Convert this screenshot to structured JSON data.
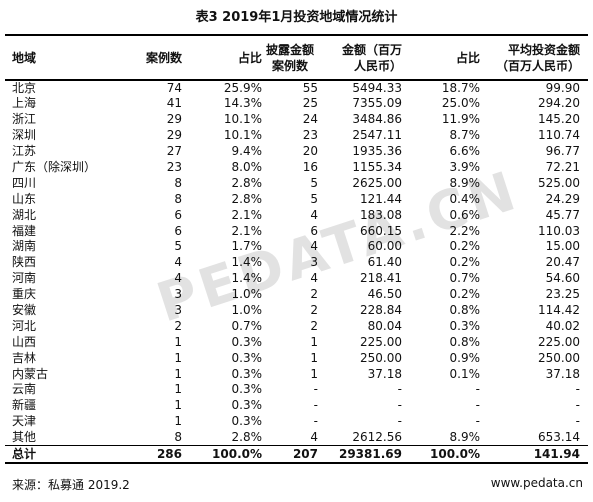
{
  "title": "表3  2019年1月投资地域情况统计",
  "table": {
    "headers": [
      [
        "地域"
      ],
      [
        "案例数"
      ],
      [
        "占比"
      ],
      [
        "披露金额",
        "案例数"
      ],
      [
        "金额（百万",
        "人民币）"
      ],
      [
        "占比"
      ],
      [
        "平均投资金额",
        "（百万人民币）"
      ]
    ],
    "rows": [
      [
        "北京",
        "74",
        "25.9%",
        "55",
        "5494.33",
        "18.7%",
        "99.90"
      ],
      [
        "上海",
        "41",
        "14.3%",
        "25",
        "7355.09",
        "25.0%",
        "294.20"
      ],
      [
        "浙江",
        "29",
        "10.1%",
        "24",
        "3484.86",
        "11.9%",
        "145.20"
      ],
      [
        "深圳",
        "29",
        "10.1%",
        "23",
        "2547.11",
        "8.7%",
        "110.74"
      ],
      [
        "江苏",
        "27",
        "9.4%",
        "20",
        "1935.36",
        "6.6%",
        "96.77"
      ],
      [
        "广东（除深圳）",
        "23",
        "8.0%",
        "16",
        "1155.34",
        "3.9%",
        "72.21"
      ],
      [
        "四川",
        "8",
        "2.8%",
        "5",
        "2625.00",
        "8.9%",
        "525.00"
      ],
      [
        "山东",
        "8",
        "2.8%",
        "5",
        "121.44",
        "0.4%",
        "24.29"
      ],
      [
        "湖北",
        "6",
        "2.1%",
        "4",
        "183.08",
        "0.6%",
        "45.77"
      ],
      [
        "福建",
        "6",
        "2.1%",
        "6",
        "660.15",
        "2.2%",
        "110.03"
      ],
      [
        "湖南",
        "5",
        "1.7%",
        "4",
        "60.00",
        "0.2%",
        "15.00"
      ],
      [
        "陕西",
        "4",
        "1.4%",
        "3",
        "61.40",
        "0.2%",
        "20.47"
      ],
      [
        "河南",
        "4",
        "1.4%",
        "4",
        "218.41",
        "0.7%",
        "54.60"
      ],
      [
        "重庆",
        "3",
        "1.0%",
        "2",
        "46.50",
        "0.2%",
        "23.25"
      ],
      [
        "安徽",
        "3",
        "1.0%",
        "2",
        "228.84",
        "0.8%",
        "114.42"
      ],
      [
        "河北",
        "2",
        "0.7%",
        "2",
        "80.04",
        "0.3%",
        "40.02"
      ],
      [
        "山西",
        "1",
        "0.3%",
        "1",
        "225.00",
        "0.8%",
        "225.00"
      ],
      [
        "吉林",
        "1",
        "0.3%",
        "1",
        "250.00",
        "0.9%",
        "250.00"
      ],
      [
        "内蒙古",
        "1",
        "0.3%",
        "1",
        "37.18",
        "0.1%",
        "37.18"
      ],
      [
        "云南",
        "1",
        "0.3%",
        "-",
        "-",
        "-",
        "-"
      ],
      [
        "新疆",
        "1",
        "0.3%",
        "-",
        "-",
        "-",
        "-"
      ],
      [
        "天津",
        "1",
        "0.3%",
        "-",
        "-",
        "-",
        "-"
      ],
      [
        "其他",
        "8",
        "2.8%",
        "4",
        "2612.56",
        "8.9%",
        "653.14"
      ]
    ],
    "total": [
      "总计",
      "286",
      "100.0%",
      "207",
      "29381.69",
      "100.0%",
      "141.94"
    ]
  },
  "source": "来源：私募通 2019.2",
  "website": "www.pedata.cn",
  "watermark": "PEDATA.CN"
}
